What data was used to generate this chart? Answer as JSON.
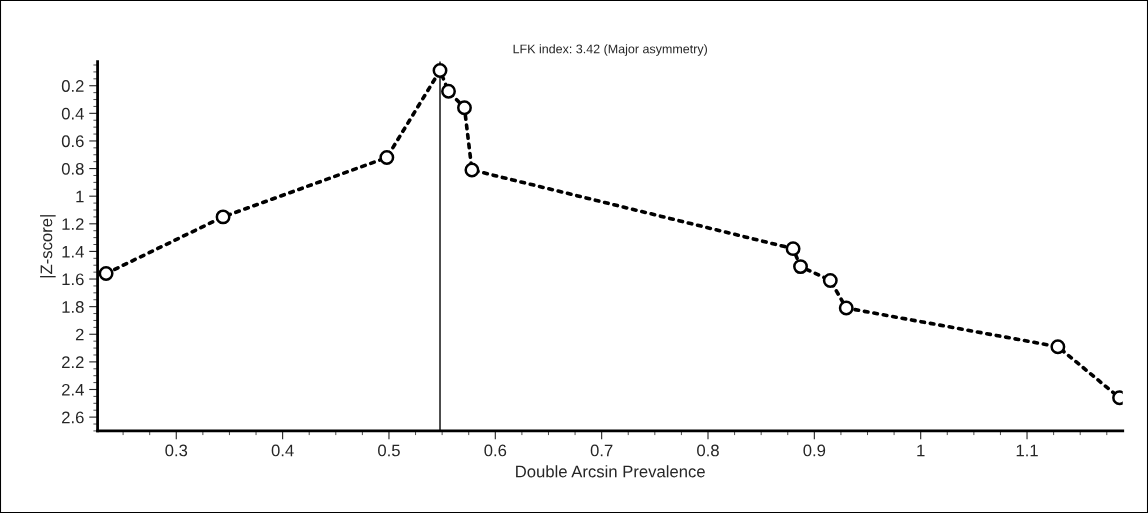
{
  "chart_data": {
    "type": "line",
    "title": "LFK index: 3.42 (Major asymmetry)",
    "xlabel": "Double Arcsin Prevalence",
    "ylabel": "|Z-score|",
    "x": [
      0.234,
      0.344,
      0.498,
      0.548,
      0.556,
      0.571,
      0.578,
      0.88,
      0.887,
      0.915,
      0.93,
      1.129,
      1.187
    ],
    "series": [
      {
        "color": "#000000",
        "values": [
          1.56,
          1.15,
          0.72,
          0.09,
          0.24,
          0.36,
          0.81,
          1.38,
          1.51,
          1.61,
          1.81,
          2.09,
          2.46
        ]
      }
    ],
    "marker": "circle",
    "line_style": "dotted",
    "grid": false,
    "legend": false,
    "ref_lines": [
      {
        "axis": "x",
        "value": 0.548,
        "color": "#000000"
      }
    ],
    "xlim": [
      0.226,
      1.19
    ],
    "xticks": [
      0.3,
      0.4,
      0.5,
      0.6,
      0.7,
      0.8,
      0.9,
      1,
      1.1
    ],
    "ylim": [
      2.7,
      0.025
    ],
    "yticks": [
      0.2,
      0.4,
      0.6,
      0.8,
      1,
      1.2,
      1.4,
      1.6,
      1.8,
      2,
      2.2,
      2.4,
      2.6
    ]
  }
}
